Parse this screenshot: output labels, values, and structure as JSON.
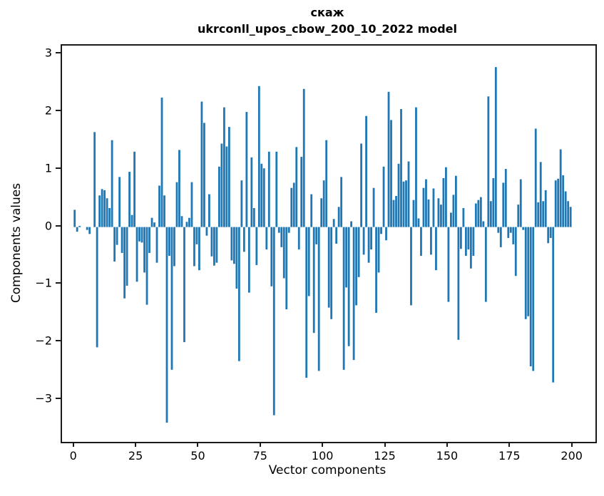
{
  "figure": {
    "title_line1": "скаж",
    "title_line2": "ukrconll_upos_cbow_200_10_2022 model"
  },
  "chart_data": {
    "type": "bar",
    "title": "скаж",
    "subtitle": "ukrconll_upos_cbow_200_10_2022 model",
    "xlabel": "Vector components",
    "ylabel": "Components values",
    "bar_color": "#1f77b4",
    "grid": false,
    "legend": "none",
    "n_components": 200,
    "x_ticks": [
      0,
      25,
      50,
      75,
      100,
      125,
      150,
      175,
      200
    ],
    "y_ticks": [
      3,
      2,
      1,
      0,
      -1,
      -2,
      -3
    ],
    "xlim": [
      -10,
      209
    ],
    "ylim": [
      -3.7,
      3.15
    ],
    "values": [
      0.3,
      -0.08,
      0.02,
      0.0,
      0.0,
      -0.05,
      -0.12,
      0.0,
      1.65,
      -2.09,
      0.55,
      0.66,
      0.64,
      0.5,
      0.33,
      1.51,
      -0.6,
      -0.31,
      0.87,
      -0.45,
      -1.24,
      -1.02,
      0.96,
      0.21,
      1.31,
      -0.95,
      -0.25,
      -0.27,
      -0.79,
      -1.35,
      -0.45,
      0.16,
      0.08,
      -0.62,
      0.72,
      2.25,
      0.55,
      -3.4,
      -0.5,
      -2.48,
      -0.68,
      0.78,
      1.34,
      0.19,
      -2.0,
      0.09,
      0.16,
      0.78,
      -0.68,
      -0.3,
      -0.75,
      2.18,
      1.81,
      -0.15,
      0.57,
      -0.51,
      -0.67,
      -0.62,
      1.05,
      1.45,
      2.08,
      1.4,
      1.74,
      -0.58,
      -0.64,
      -1.07,
      -2.33,
      0.81,
      -0.43,
      2.0,
      -1.14,
      1.21,
      0.33,
      -0.66,
      2.45,
      1.1,
      1.02,
      -0.39,
      1.31,
      -1.03,
      -3.27,
      1.31,
      -0.1,
      -0.35,
      -0.89,
      -1.43,
      -0.1,
      0.68,
      0.77,
      1.39,
      -0.39,
      1.22,
      2.4,
      -2.62,
      -1.2,
      0.57,
      -1.84,
      -0.3,
      -2.5,
      0.5,
      0.81,
      1.51,
      -1.4,
      -1.6,
      0.14,
      -0.29,
      0.35,
      0.87,
      -2.48,
      -1.05,
      -2.07,
      0.1,
      -2.31,
      -1.36,
      -0.87,
      1.45,
      -0.48,
      1.93,
      -0.62,
      -0.39,
      0.68,
      -1.49,
      -0.79,
      -0.12,
      1.05,
      -0.23,
      2.35,
      1.86,
      0.47,
      0.54,
      1.1,
      2.05,
      0.79,
      0.81,
      1.14,
      -1.36,
      0.47,
      2.08,
      0.15,
      -0.5,
      0.68,
      0.83,
      0.48,
      -0.48,
      0.67,
      -0.75,
      0.5,
      0.39,
      0.85,
      1.04,
      -1.3,
      0.25,
      0.56,
      0.89,
      -1.96,
      -0.38,
      0.33,
      -0.5,
      -0.39,
      -0.72,
      -0.5,
      0.41,
      0.47,
      0.52,
      0.1,
      -1.3,
      2.27,
      0.45,
      0.85,
      2.78,
      -0.1,
      -0.35,
      0.77,
      1.01,
      -0.19,
      -0.1,
      -0.3,
      -0.85,
      0.39,
      0.83,
      -0.05,
      -1.6,
      -1.55,
      -2.42,
      -2.5,
      1.71,
      0.43,
      1.13,
      0.45,
      0.64,
      -0.28,
      -0.19,
      -2.7,
      0.81,
      0.84,
      1.35,
      0.9,
      0.62,
      0.45,
      0.35
    ]
  }
}
